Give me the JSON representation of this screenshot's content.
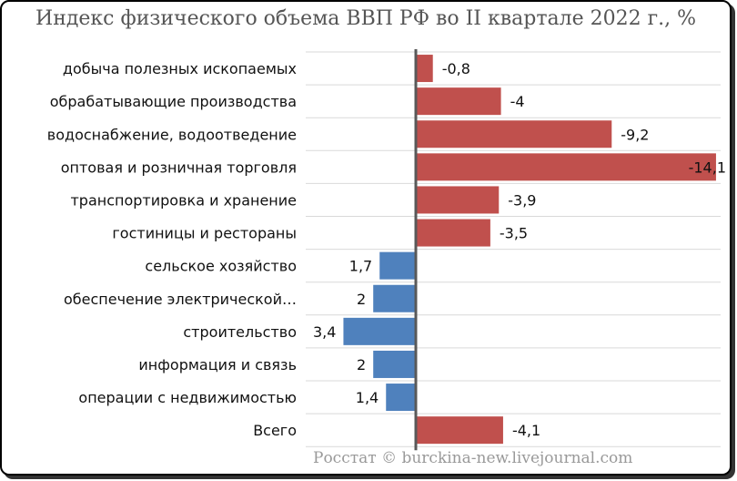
{
  "chart_data": {
    "type": "bar",
    "orientation": "horizontal",
    "title": "Индекс физического объема ВВП РФ во II квартале 2022 г., %",
    "categories": [
      "добыча полезных ископаемых",
      "обрабатывающие производства",
      "водоснабжение, водоотведение",
      "оптовая и розничная торговля",
      "транспортировка и хранение",
      "гостиницы и рестораны",
      "сельское хозяйство",
      "обеспечение электрической…",
      "строительство",
      "информация и связь",
      "операции с недвижимостью",
      "Всего"
    ],
    "values": [
      -0.8,
      -4,
      -9.2,
      -14.1,
      -3.9,
      -3.5,
      1.7,
      2,
      3.4,
      2,
      1.4,
      -4.1
    ],
    "value_labels": [
      "-0,8",
      "-4",
      "-9,2",
      "-14,1",
      "-3,9",
      "-3,5",
      "1,7",
      "2",
      "3,4",
      "2",
      "1,4",
      "-4,1"
    ],
    "direction": "negative values extend right, positive values extend left",
    "colors": {
      "negative": "#c0504d",
      "positive": "#4f81bd",
      "axis": "#595959",
      "grid": "#d9d9d9"
    }
  },
  "footer": "Росстат © burckina-new.livejournal.com"
}
